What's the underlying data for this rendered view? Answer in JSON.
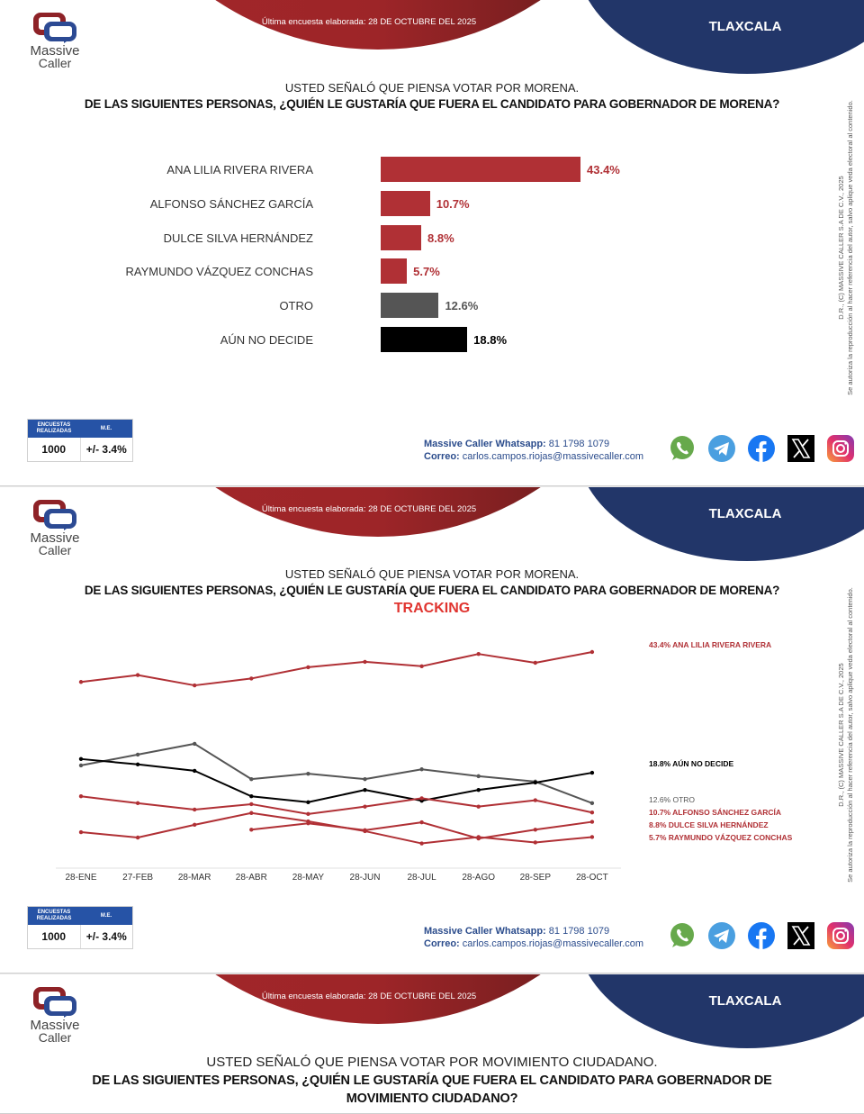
{
  "header": {
    "date_text": "Última encuesta elaborada: 28 DE OCTUBRE DEL 2025",
    "state": "TLAXCALA",
    "logo_line1": "Massive",
    "logo_line2": "Caller"
  },
  "side_note": {
    "line1": "D.R., (C) MASSIVE CALLER S.A DE C.V., 2025",
    "line2": "Se autoriza la reproducción al hacer referencia del autor, salvo aplique veda electoral al contenido."
  },
  "slide1": {
    "question_line1": "USTED SEÑALÓ QUE PIENSA VOTAR POR MORENA.",
    "question_line2": "DE LAS SIGUIENTES PERSONAS, ¿QUIÉN LE GUSTARÍA QUE FUERA EL CANDIDATO PARA GOBERNADOR DE MORENA?"
  },
  "slide2": {
    "question_line1": "USTED SEÑALÓ QUE PIENSA VOTAR POR MORENA.",
    "question_line2": "DE LAS SIGUIENTES PERSONAS, ¿QUIÉN LE GUSTARÍA QUE FUERA EL CANDIDATO PARA GOBERNADOR DE MORENA?",
    "tracking_label": "TRACKING"
  },
  "slide3": {
    "question_line1": "USTED SEÑALÓ QUE PIENSA VOTAR POR MOVIMIENTO CIUDADANO.",
    "question_line2": "DE LAS SIGUIENTES PERSONAS, ¿QUIÉN LE GUSTARÍA QUE FUERA EL CANDIDATO PARA GOBERNADOR DE",
    "question_line3": "MOVIMIENTO CIUDADANO?"
  },
  "stats": {
    "col1_header": "ENCUESTAS REALIZADAS",
    "col2_header": "M.E.",
    "col1_value": "1000",
    "col2_value": "+/- 3.4%"
  },
  "contact": {
    "whatsapp_label": "Massive Caller Whatsapp:",
    "whatsapp_number": "81 1798 1079",
    "email_label": "Correo:",
    "email": "carlos.campos.riojas@massivecaller.com"
  },
  "socials": [
    "whatsapp-icon",
    "telegram-icon",
    "facebook-icon",
    "x-icon",
    "instagram-icon"
  ],
  "colors": {
    "red": "#b03035",
    "gray": "#555555",
    "black": "#000000",
    "navy": "#223669",
    "tracking": "#e0342f"
  },
  "chart_data": [
    {
      "type": "bar",
      "orientation": "horizontal",
      "title": "DE LAS SIGUIENTES PERSONAS, ¿QUIÉN LE GUSTARÍA QUE FUERA EL CANDIDATO PARA GOBERNADOR DE MORENA?",
      "categories": [
        "ANA LILIA RIVERA RIVERA",
        "ALFONSO SÁNCHEZ GARCÍA",
        "DULCE SILVA HERNÁNDEZ",
        "RAYMUNDO VÁZQUEZ CONCHAS",
        "OTRO",
        "AÚN NO DECIDE"
      ],
      "values": [
        43.4,
        10.7,
        8.8,
        5.7,
        12.6,
        18.8
      ],
      "value_labels": [
        "43.4%",
        "10.7%",
        "8.8%",
        "5.7%",
        "12.6%",
        "18.8%"
      ],
      "bar_colors": [
        "#b03035",
        "#b03035",
        "#b03035",
        "#b03035",
        "#555555",
        "#000000"
      ],
      "label_colors": [
        "#b03035",
        "#b03035",
        "#b03035",
        "#b03035",
        "#555555",
        "#000000"
      ],
      "xlim": [
        0,
        45
      ],
      "unit": "%"
    },
    {
      "type": "line",
      "title": "TRACKING",
      "x": [
        "28-ENE",
        "27-FEB",
        "28-MAR",
        "28-ABR",
        "28-MAY",
        "28-JUN",
        "28-JUL",
        "28-AGO",
        "28-SEP",
        "28-OCT"
      ],
      "ylim": [
        0,
        50
      ],
      "grid": false,
      "legend": "right",
      "series": [
        {
          "name": "ANA LILIA RIVERA RIVERA",
          "legend_label": "43.4% ANA LILIA RIVERA RIVERA",
          "color": "#b03035",
          "values": [
            37.3,
            38.7,
            36.6,
            38.0,
            40.3,
            41.4,
            40.5,
            43.0,
            41.2,
            43.4
          ]
        },
        {
          "name": "AÚN NO DECIDE",
          "legend_label": "18.8% AÚN NO DECIDE",
          "color": "#000000",
          "values": [
            21.6,
            20.5,
            19.2,
            14.0,
            12.8,
            15.3,
            13.1,
            15.3,
            16.8,
            18.8
          ]
        },
        {
          "name": "OTRO",
          "legend_label": "12.6% OTRO",
          "color": "#555555",
          "values": [
            20.3,
            22.5,
            24.7,
            17.5,
            18.6,
            17.5,
            19.5,
            18.1,
            17.0,
            12.6
          ]
        },
        {
          "name": "ALFONSO SÁNCHEZ GARCÍA",
          "legend_label": "10.7% ALFONSO SÁNCHEZ GARCÍA",
          "color": "#b03035",
          "values": [
            14.0,
            12.6,
            11.3,
            12.4,
            10.4,
            11.9,
            13.6,
            11.9,
            13.2,
            10.7
          ]
        },
        {
          "name": "DULCE SILVA HERNÁNDEZ",
          "legend_label": "8.8% DULCE SILVA HERNÁNDEZ",
          "color": "#b03035",
          "values": [
            null,
            null,
            null,
            7.2,
            8.5,
            7.1,
            8.7,
            5.4,
            7.2,
            8.8
          ]
        },
        {
          "name": "RAYMUNDO VÁZQUEZ CONCHAS",
          "legend_label": "5.7% RAYMUNDO VÁZQUEZ CONCHAS",
          "color": "#b03035",
          "values": [
            6.7,
            5.6,
            8.2,
            10.6,
            8.9,
            6.9,
            4.4,
            5.7,
            4.6,
            5.7
          ]
        }
      ]
    }
  ]
}
